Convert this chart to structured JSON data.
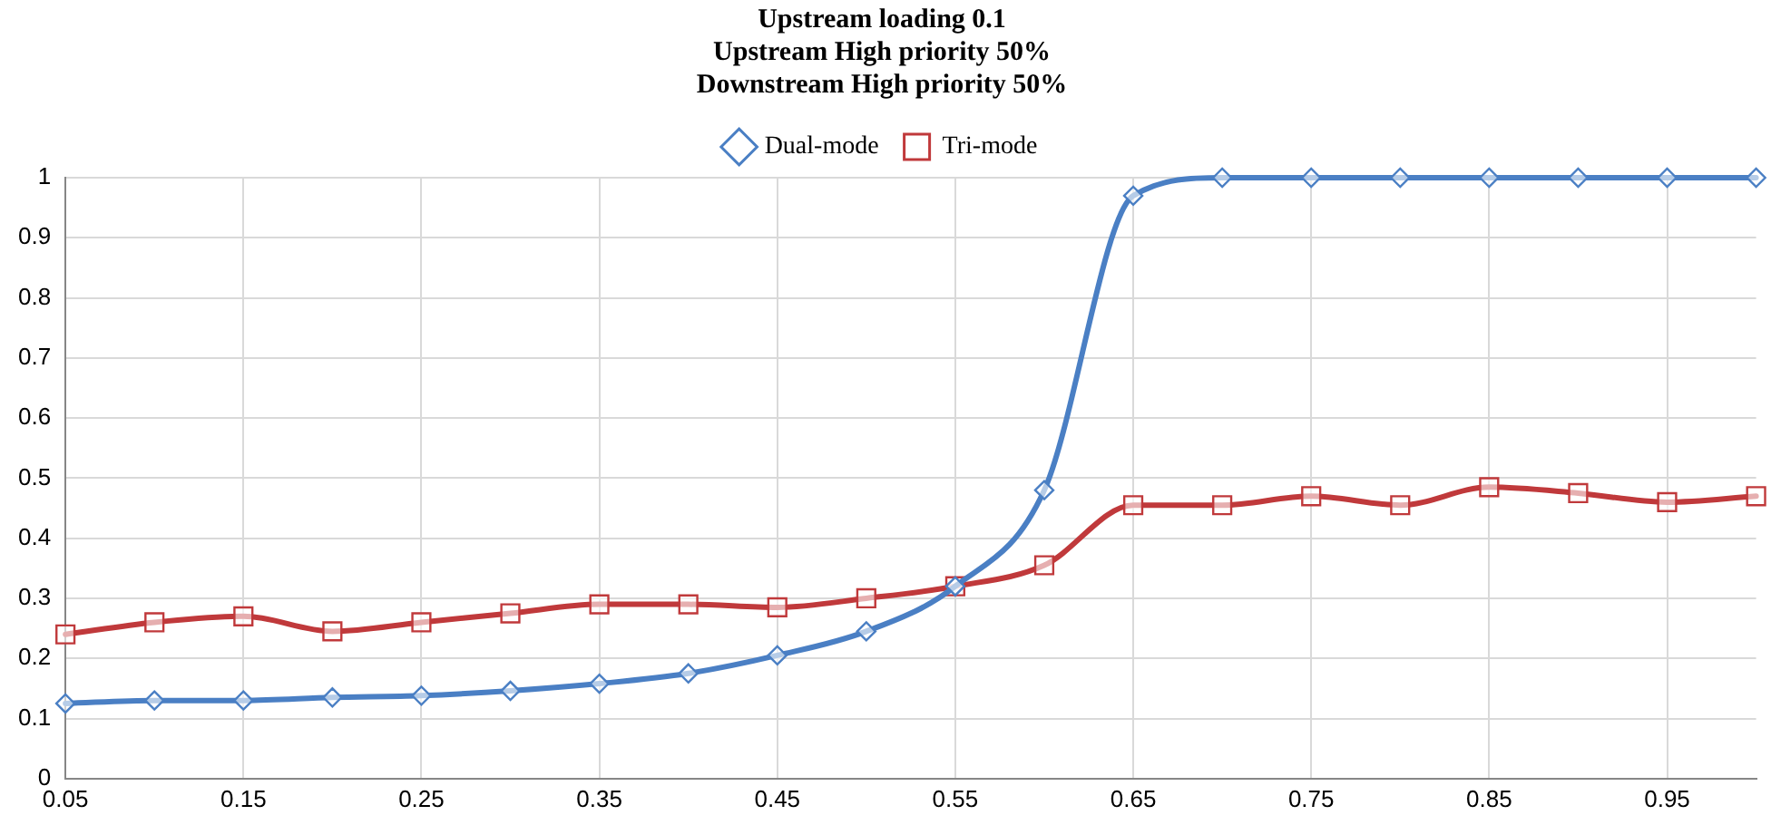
{
  "chart_data": {
    "type": "line",
    "title": "Upstream loading 0.1\nUpstream High priority 50%\nDownstream High priority 50%",
    "x": [
      0.05,
      0.1,
      0.15,
      0.2,
      0.25,
      0.3,
      0.35,
      0.4,
      0.45,
      0.5,
      0.55,
      0.6,
      0.65,
      0.7,
      0.75,
      0.8,
      0.85,
      0.9,
      0.95,
      1.0
    ],
    "series": [
      {
        "name": "Dual-mode",
        "color": "#4a7fc4",
        "marker": "diamond",
        "values": [
          0.125,
          0.13,
          0.13,
          0.135,
          0.138,
          0.146,
          0.158,
          0.175,
          0.205,
          0.245,
          0.32,
          0.48,
          0.97,
          1,
          1,
          1,
          1,
          1,
          1,
          1
        ]
      },
      {
        "name": "Tri-mode",
        "color": "#c0393b",
        "marker": "square",
        "values": [
          0.24,
          0.26,
          0.27,
          0.245,
          0.26,
          0.275,
          0.29,
          0.29,
          0.285,
          0.3,
          0.32,
          0.355,
          0.455,
          0.455,
          0.47,
          0.455,
          0.485,
          0.475,
          0.46,
          0.47
        ]
      }
    ],
    "xlim": [
      0.05,
      1.0
    ],
    "xticks": [
      0.05,
      0.15,
      0.25,
      0.35,
      0.45,
      0.55,
      0.65,
      0.75,
      0.85,
      0.95
    ],
    "ylim": [
      0,
      1
    ],
    "yticks": [
      0,
      0.1,
      0.2,
      0.3,
      0.4,
      0.5,
      0.6,
      0.7,
      0.8,
      0.9,
      1
    ],
    "grid": true,
    "legend": "top",
    "line_style": "solid"
  }
}
